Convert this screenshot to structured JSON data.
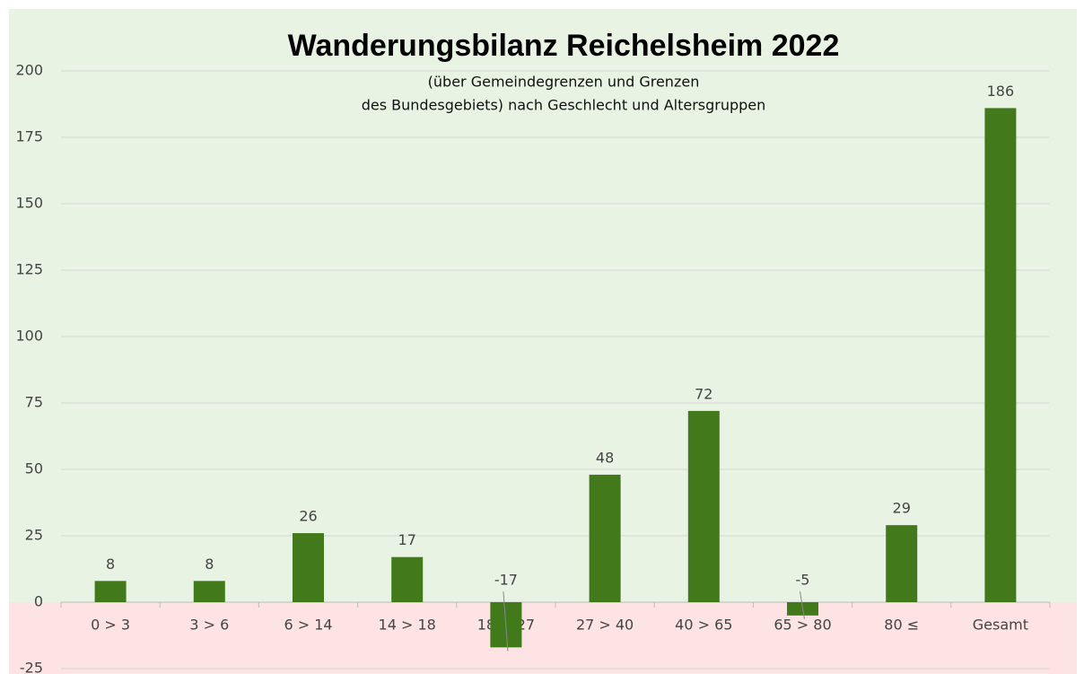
{
  "chart_data": {
    "type": "bar",
    "title": "Wanderungsbilanz Reichelsheim 2022",
    "subtitle": [
      "(über Gemeindegrenzen  und Grenzen",
      "des Bundesgebiets) nach Geschlecht und Altersgruppen"
    ],
    "categories": [
      "0 > 3",
      "3 > 6",
      "6 > 14",
      "14 > 18",
      "18 > 27",
      "27 > 40",
      "40 > 65",
      "65 > 80",
      "80 ≤",
      "Gesamt"
    ],
    "values": [
      8,
      8,
      26,
      17,
      -17,
      48,
      72,
      -5,
      29,
      186
    ],
    "color": "#41791b",
    "positive_background": "#e9f3e4",
    "negative_background": "#fde3e4",
    "ylim": [
      -25,
      200
    ],
    "yticks": [
      -25,
      0,
      25,
      50,
      75,
      100,
      125,
      150,
      175,
      200
    ],
    "grid": true
  }
}
